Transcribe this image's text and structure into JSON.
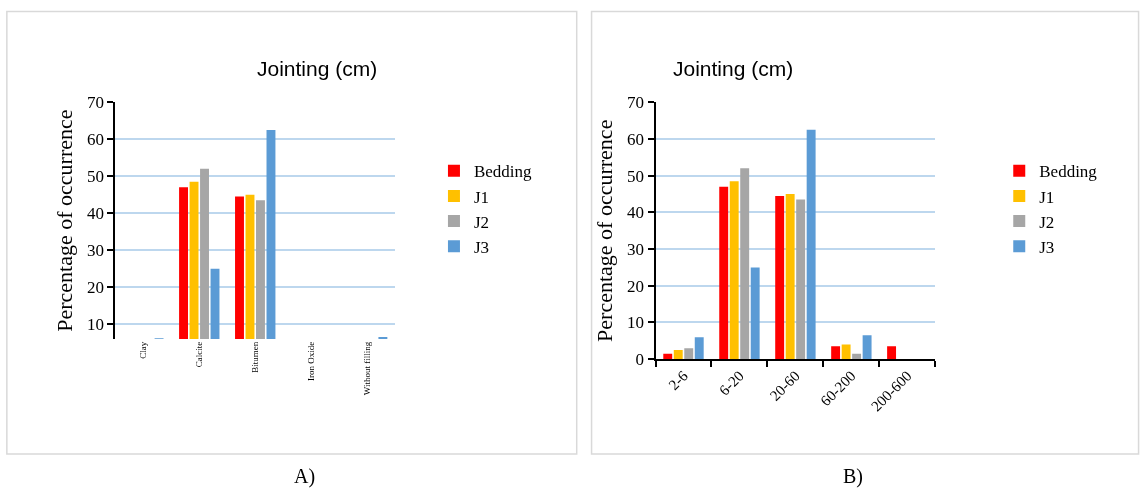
{
  "chart_data": [
    {
      "type": "bar",
      "title": "Jointing (cm)",
      "ylabel": "Percentage of occurrence",
      "categories": [
        "Clay",
        "Calcite",
        "Bitumen",
        "Iron Oxide",
        "Without filling"
      ],
      "series": [
        {
          "name": "Bedding",
          "color": "#ff0000",
          "values": [
            null,
            47,
            44.5,
            null,
            null
          ]
        },
        {
          "name": "J1",
          "color": "#ffc000",
          "values": [
            null,
            48.5,
            45,
            null,
            null
          ]
        },
        {
          "name": "J2",
          "color": "#a6a6a6",
          "values": [
            null,
            52,
            43.5,
            null,
            null
          ]
        },
        {
          "name": "J3",
          "color": "#5b9bd5",
          "values": [
            6.2,
            25,
            62.5,
            null,
            6.5
          ]
        }
      ],
      "ylim": [
        6,
        70
      ],
      "yticks": [
        10,
        20,
        30,
        40,
        50,
        60,
        70
      ],
      "grid": "y",
      "legend": "right",
      "annotations": [
        "A)"
      ]
    },
    {
      "type": "bar",
      "title": "Jointing (cm)",
      "ylabel": "Percentage of occurrence",
      "categories": [
        "2-6",
        "6-20",
        "20-60",
        "60-200",
        "200-600"
      ],
      "series": [
        {
          "name": "Bedding",
          "color": "#ff0000",
          "values": [
            1.5,
            47,
            44.5,
            3.5,
            3.5
          ]
        },
        {
          "name": "J1",
          "color": "#ffc000",
          "values": [
            2.5,
            48.5,
            45,
            4,
            null
          ]
        },
        {
          "name": "J2",
          "color": "#a6a6a6",
          "values": [
            3,
            52,
            43.5,
            1.5,
            null
          ]
        },
        {
          "name": "J3",
          "color": "#5b9bd5",
          "values": [
            6,
            25,
            62.5,
            6.5,
            null
          ]
        }
      ],
      "ylim": [
        0,
        70
      ],
      "yticks": [
        0,
        10,
        20,
        30,
        40,
        50,
        60,
        70
      ],
      "grid": "y",
      "legend": "right",
      "annotations": [
        "B)"
      ]
    }
  ]
}
